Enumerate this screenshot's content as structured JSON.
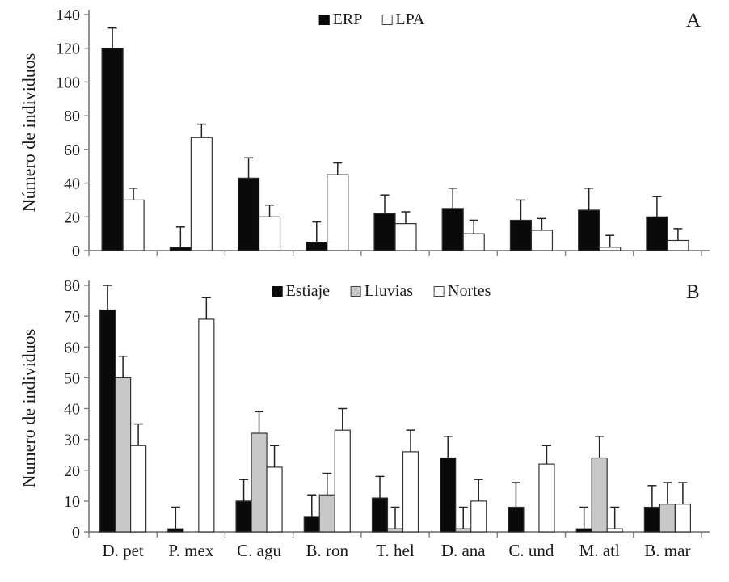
{
  "figure": {
    "colors": {
      "axis": "#7f7f7f",
      "bar_stroke": "#333333",
      "error_bar": "#222222",
      "text": "#1a1a1a"
    }
  },
  "chart_data": [
    {
      "type": "bar",
      "panel_label": "A",
      "title": "",
      "xlabel": "",
      "ylabel": "Número de individuos",
      "ylim": [
        0,
        140
      ],
      "ytick_step": 20,
      "grid": false,
      "legend_position": "top-center-inside",
      "error_bars": "upper-only-with-caps",
      "categories": [
        "D. pet",
        "P. mex",
        "C. agu",
        "B. ron",
        "T. hel",
        "D. ana",
        "C. und",
        "M. atl",
        "B. mar"
      ],
      "series": [
        {
          "name": "ERP",
          "fill": "#0a0a0a",
          "values": [
            120,
            2,
            43,
            5,
            22,
            25,
            18,
            24,
            20
          ],
          "errors_up": [
            12,
            12,
            12,
            12,
            11,
            12,
            12,
            13,
            12
          ]
        },
        {
          "name": "LPA",
          "fill": "#ffffff",
          "values": [
            30,
            67,
            20,
            45,
            16,
            10,
            12,
            2,
            6
          ],
          "errors_up": [
            7,
            8,
            7,
            7,
            7,
            8,
            7,
            7,
            7
          ]
        }
      ]
    },
    {
      "type": "bar",
      "panel_label": "B",
      "title": "",
      "xlabel": "",
      "ylabel": "Numero de individuos",
      "ylim": [
        0,
        80
      ],
      "ytick_step": 10,
      "grid": false,
      "legend_position": "top-center-inside",
      "error_bars": "upper-only-with-caps",
      "categories": [
        "D. pet",
        "P. mex",
        "C. agu",
        "B. ron",
        "T. hel",
        "D. ana",
        "C. und",
        "M. atl",
        "B. mar"
      ],
      "series": [
        {
          "name": "Estiaje",
          "fill": "#0a0a0a",
          "values": [
            72,
            1,
            10,
            5,
            11,
            24,
            8,
            1,
            8
          ],
          "errors_up": [
            8,
            7,
            7,
            7,
            7,
            7,
            8,
            7,
            7
          ]
        },
        {
          "name": "Lluvias",
          "fill": "#c8c8c8",
          "values": [
            50,
            0,
            32,
            12,
            1,
            1,
            0,
            24,
            9
          ],
          "errors_up": [
            7,
            0,
            7,
            7,
            7,
            7,
            0,
            7,
            7
          ]
        },
        {
          "name": "Nortes",
          "fill": "#ffffff",
          "values": [
            28,
            69,
            21,
            33,
            26,
            10,
            22,
            1,
            9
          ],
          "errors_up": [
            7,
            7,
            7,
            7,
            7,
            7,
            6,
            7,
            7
          ]
        }
      ]
    }
  ]
}
